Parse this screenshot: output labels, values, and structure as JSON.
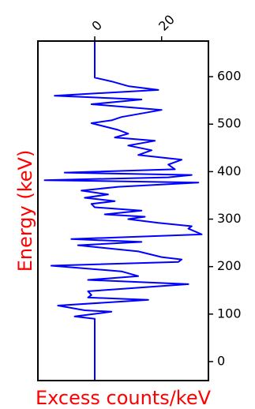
{
  "chart_data": {
    "type": "line",
    "orientation": "vertical",
    "xlabel": "Excess counts/keV",
    "ylabel": "Energy (keV)",
    "axis_label_color": "#ff0000",
    "line_color": "#0000ff",
    "xlim": [
      -17,
      34
    ],
    "ylim": [
      -40,
      675
    ],
    "x_ticks": [
      0,
      20
    ],
    "x_tick_labels": [
      "0",
      "20"
    ],
    "x_ticks_position": "top",
    "y_ticks": [
      0,
      100,
      200,
      300,
      400,
      500,
      600
    ],
    "y_tick_labels": [
      "0",
      "100",
      "200",
      "300",
      "400",
      "500",
      "600"
    ],
    "y_ticks_position": "right",
    "grid": false,
    "series": [
      {
        "points": [
          [
            0,
            -40
          ],
          [
            0,
            90
          ],
          [
            -6,
            95
          ],
          [
            5,
            105
          ],
          [
            -3,
            108
          ],
          [
            -11,
            118
          ],
          [
            16,
            130
          ],
          [
            -2,
            135
          ],
          [
            -1,
            140
          ],
          [
            -2,
            148
          ],
          [
            6,
            152
          ],
          [
            28,
            163
          ],
          [
            -2,
            172
          ],
          [
            13,
            180
          ],
          [
            8,
            190
          ],
          [
            -13,
            202
          ],
          [
            25,
            210
          ],
          [
            26,
            215
          ],
          [
            20,
            220
          ],
          [
            13,
            232
          ],
          [
            -5,
            245
          ],
          [
            14,
            252
          ],
          [
            -7,
            258
          ],
          [
            32,
            268
          ],
          [
            28,
            280
          ],
          [
            29,
            285
          ],
          [
            19,
            292
          ],
          [
            10,
            300
          ],
          [
            15,
            305
          ],
          [
            3,
            310
          ],
          [
            14,
            318
          ],
          [
            0,
            325
          ],
          [
            -1,
            332
          ],
          [
            6,
            338
          ],
          [
            -3,
            345
          ],
          [
            4,
            352
          ],
          [
            -4,
            360
          ],
          [
            7,
            368
          ],
          [
            31,
            377
          ],
          [
            -15,
            382
          ],
          [
            22,
            388
          ],
          [
            29,
            393
          ],
          [
            -9,
            398
          ],
          [
            24,
            405
          ],
          [
            22,
            415
          ],
          [
            26,
            425
          ],
          [
            13,
            435
          ],
          [
            17,
            445
          ],
          [
            10,
            455
          ],
          [
            18,
            465
          ],
          [
            6,
            472
          ],
          [
            10,
            480
          ],
          [
            7,
            488
          ],
          [
            -1,
            502
          ],
          [
            5,
            508
          ],
          [
            8,
            515
          ],
          [
            20,
            530
          ],
          [
            -1,
            542
          ],
          [
            14,
            552
          ],
          [
            -12,
            560
          ],
          [
            19,
            572
          ],
          [
            10,
            580
          ],
          [
            5,
            590
          ],
          [
            0,
            598
          ],
          [
            0,
            675
          ]
        ]
      }
    ]
  }
}
